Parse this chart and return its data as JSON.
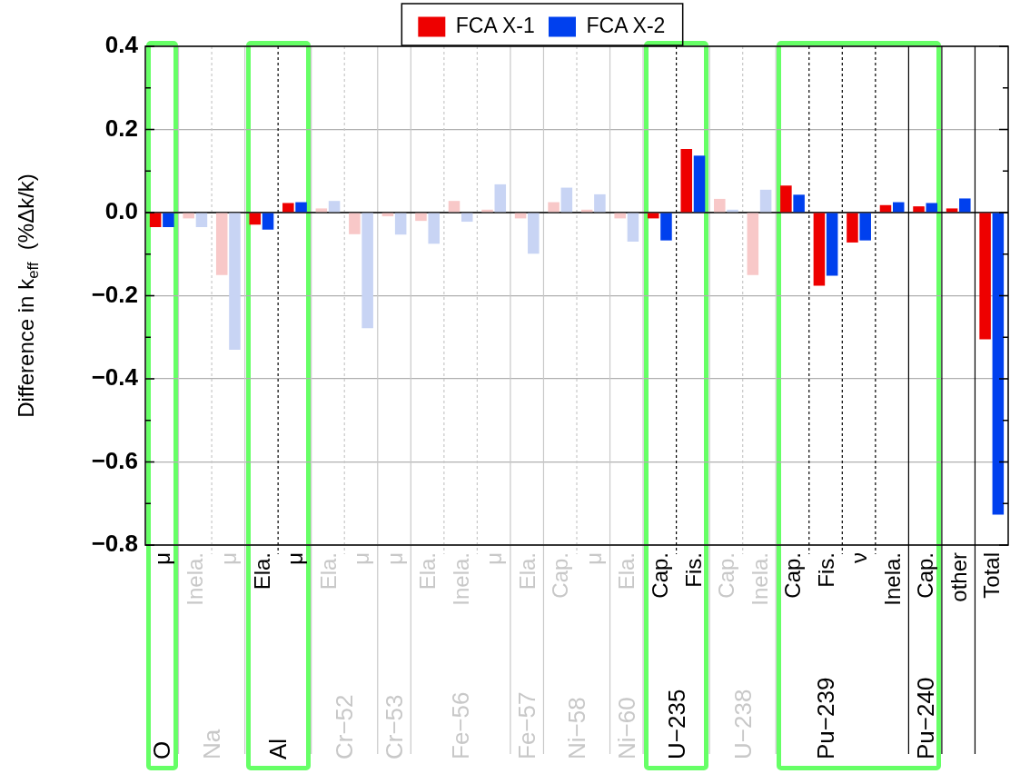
{
  "chart_data": {
    "type": "bar",
    "ylabel": "Difference in k$_{eff}$  (%Δk/k)",
    "categories": [
      "μ\nO",
      "Inela.\nNa",
      "μ",
      "Ela.\nAl",
      "μ",
      "Ela.\nCr−52",
      "μ",
      "μ\nCr−53",
      "Ela.",
      "Inela.\nFe−56",
      "μ",
      "Ela.\nFe−57",
      "Cap.\nNi−58",
      "μ",
      "Ela.\nNi−60",
      "Cap.\nU−235",
      "Fis.",
      "Cap.\nU−238",
      "Inela.",
      "Cap.",
      "Fis.\nPu−239",
      "ν",
      "Inela.",
      "Cap.\nPu−240",
      "other",
      "Total"
    ],
    "series": [
      {
        "name": "FCA X-1",
        "color": "#ee0000",
        "colors": [
          "#ee0000",
          "#f8c8c8",
          "#f8c8c8",
          "#ee0000",
          "#ee0000",
          "#f8c8c8",
          "#f8c8c8",
          "#f8c8c8",
          "#f8c8c8",
          "#f8c8c8",
          "#f8c8c8",
          "#f8c8c8",
          "#f8c8c8",
          "#f8c8c8",
          "#f8c8c8",
          "#ee0000",
          "#ee0000",
          "#f8c8c8",
          "#f8c8c8",
          "#ee0000",
          "#ee0000",
          "#ee0000",
          "#ee0000",
          "#ee0000",
          "#ee0000",
          "#ee0000"
        ],
        "values": [
          -0.035,
          -0.014,
          -0.15,
          -0.029,
          0.023,
          0.01,
          -0.052,
          -0.009,
          -0.02,
          0.028,
          0.007,
          -0.014,
          0.025,
          0.007,
          -0.014,
          -0.014,
          0.153,
          0.033,
          -0.15,
          0.065,
          -0.176,
          -0.072,
          0.018,
          0.015,
          0.01,
          -0.305
        ]
      },
      {
        "name": "FCA X-2",
        "color": "#0040ee",
        "colors": [
          "#0040ee",
          "#c8d4f4",
          "#c8d4f4",
          "#0040ee",
          "#0040ee",
          "#c8d4f4",
          "#c8d4f4",
          "#c8d4f4",
          "#c8d4f4",
          "#c8d4f4",
          "#c8d4f4",
          "#c8d4f4",
          "#c8d4f4",
          "#c8d4f4",
          "#c8d4f4",
          "#0040ee",
          "#0040ee",
          "#c8d4f4",
          "#c8d4f4",
          "#0040ee",
          "#0040ee",
          "#0040ee",
          "#0040ee",
          "#0040ee",
          "#0040ee",
          "#0040ee"
        ],
        "values": [
          -0.035,
          -0.035,
          -0.33,
          -0.041,
          0.025,
          0.028,
          -0.278,
          -0.053,
          -0.075,
          -0.022,
          0.068,
          -0.099,
          0.06,
          0.044,
          -0.07,
          -0.067,
          0.137,
          0.007,
          0.055,
          0.043,
          -0.152,
          -0.067,
          0.025,
          0.023,
          0.034,
          -0.727
        ]
      }
    ],
    "ylim": [
      -0.8,
      0.4
    ],
    "yticks": [
      {
        "value": -0.8,
        "label": "−0.8"
      },
      {
        "value": -0.7,
        "label": null
      },
      {
        "value": -0.6,
        "label": "−0.6"
      },
      {
        "value": -0.5,
        "label": null
      },
      {
        "value": -0.4,
        "label": "−0.4"
      },
      {
        "value": -0.3,
        "label": null
      },
      {
        "value": -0.2,
        "label": "−0.2"
      },
      {
        "value": -0.1,
        "label": null
      },
      {
        "value": 0,
        "label": "0.0"
      },
      {
        "value": 0.1,
        "label": null
      },
      0.2,
      {
        "value": 0.3,
        "label": null
      },
      0.4
    ],
    "grid": "y",
    "legend": "top"
  }
}
